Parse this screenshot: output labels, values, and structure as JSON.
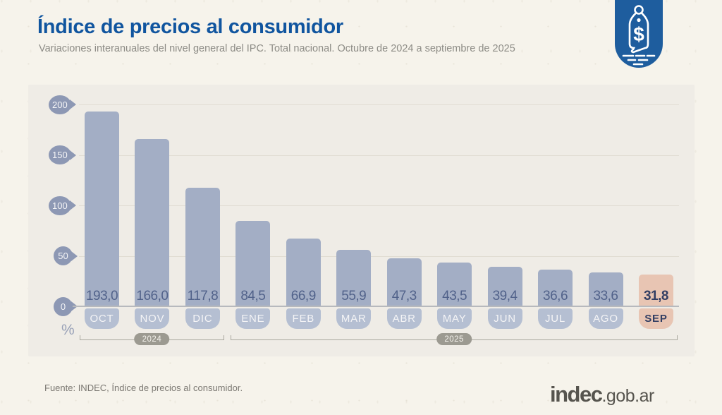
{
  "header": {
    "title": "Índice de precios al consumidor",
    "subtitle": "Variaciones interanuales del nivel general del IPC. Total nacional. Octubre de 2024 a septiembre de 2025"
  },
  "badge": {
    "symbol": "$",
    "color": "#1e5d9e"
  },
  "chart_data": {
    "type": "bar",
    "title": "Índice de precios al consumidor",
    "categories": [
      "OCT",
      "NOV",
      "DIC",
      "ENE",
      "FEB",
      "MAR",
      "ABR",
      "MAY",
      "JUN",
      "JUL",
      "AGO",
      "SEP"
    ],
    "values": [
      193.0,
      166.0,
      117.8,
      84.5,
      66.9,
      55.9,
      47.3,
      43.5,
      39.4,
      36.6,
      33.6,
      31.8
    ],
    "value_labels": [
      "193,0",
      "166,0",
      "117,8",
      "84,5",
      "66,9",
      "55,9",
      "47,3",
      "43,5",
      "39,4",
      "36,6",
      "33,6",
      "31,8"
    ],
    "highlight_index": 11,
    "xlabel": "",
    "ylabel": "%",
    "ylim": [
      0,
      200
    ],
    "y_ticks": [
      0,
      50,
      100,
      150,
      200
    ],
    "grid": true,
    "legend": "none",
    "year_groups": [
      {
        "label": "2024",
        "from": 0,
        "to": 2
      },
      {
        "label": "2025",
        "from": 3,
        "to": 11
      }
    ],
    "colors": {
      "bar": "#a3aec5",
      "bar_highlight": "#e8c5b3",
      "month_pill": "#b5bfd2",
      "month_pill_highlight": "#e8c5b3",
      "value_text": "#51628a",
      "value_text_highlight": "#323e63",
      "month_text": "#f4f4f6",
      "month_text_highlight": "#323e63",
      "tick_marker": "#8d98b4"
    }
  },
  "footer": {
    "source": "Fuente: INDEC, Índice de precios al consumidor.",
    "logo_main": "indec",
    "logo_suffix": ".gob.ar"
  }
}
